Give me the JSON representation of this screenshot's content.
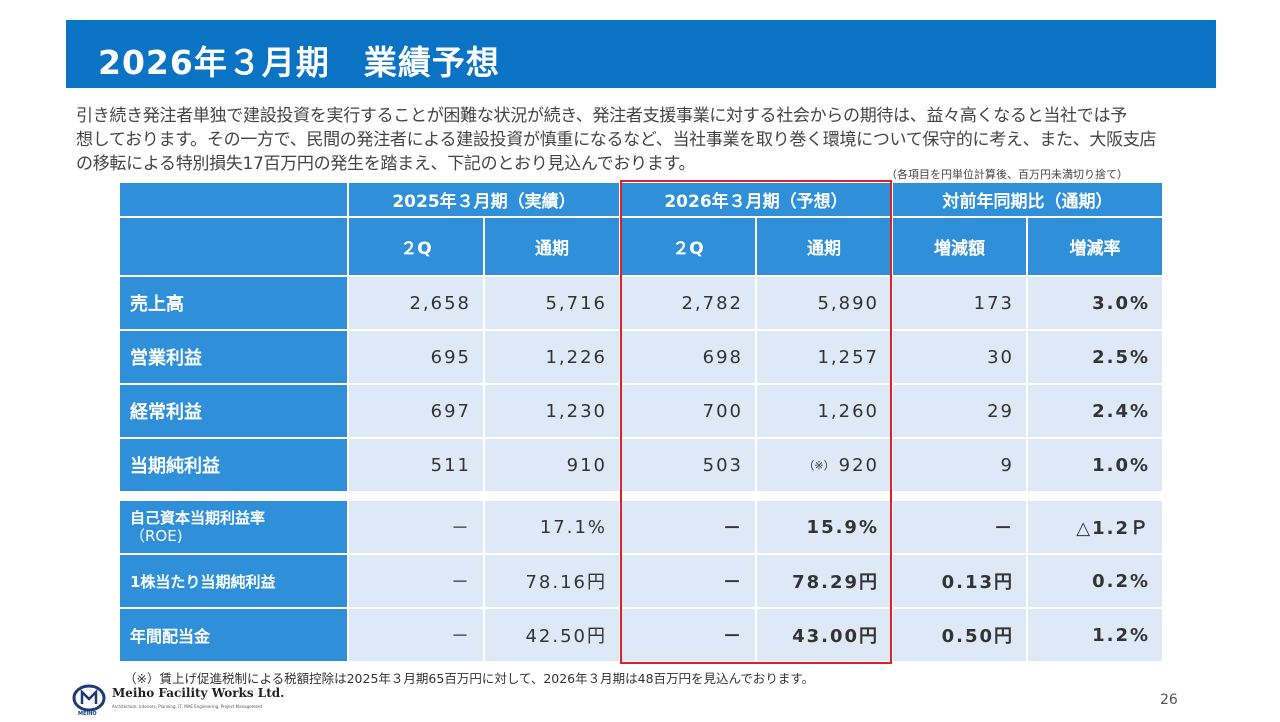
{
  "title": "2026年３月期　業績予想",
  "intro": [
    "引き続き発注者単独で建設投資を実行することが困難な状況が続き、発注者支援事業に対する社会からの期待は、益々高くなると当社では予",
    "想しております。その一方で、民間の発注者による建設投資が慎重になるなど、当社事業を取り巻く環境について保守的に考え、また、大阪支店",
    "の移転による特別損失17百万円の発生を踏まえ、下記のとおり見込んでおります。"
  ],
  "unit_note": "（各項目を円単位計算後、百万円未満切り捨て）",
  "table": {
    "group_headers": [
      "2025年３月期（実績）",
      "2026年３月期（予想）",
      "対前年同期比（通期）"
    ],
    "sub_headers": [
      "２Q",
      "通期",
      "２Q",
      "通期",
      "増減額",
      "増減率"
    ],
    "rows": [
      {
        "label": "売上高",
        "values": [
          "2,658",
          "5,716",
          "2,782",
          "5,890",
          "173",
          "3.0%"
        ]
      },
      {
        "label": "営業利益",
        "values": [
          "695",
          "1,226",
          "698",
          "1,257",
          "30",
          "2.5%"
        ]
      },
      {
        "label": "経常利益",
        "values": [
          "697",
          "1,230",
          "700",
          "1,260",
          "29",
          "2.4%"
        ]
      },
      {
        "label": "当期純利益",
        "values": [
          "511",
          "910",
          "503",
          "920",
          "9",
          "1.0%"
        ],
        "note": "（※）"
      },
      {
        "label": "自己資本当期利益率",
        "label2": "（ROE)",
        "values": [
          "－",
          "17.1%",
          "－",
          "15.9%",
          "－",
          "△1.2Ｐ"
        ]
      },
      {
        "label": "1株当たり当期純利益",
        "values": [
          "－",
          "78.16円",
          "－",
          "78.29円",
          "0.13円",
          "0.2%"
        ]
      },
      {
        "label": "年間配当金",
        "values": [
          "－",
          "42.50円",
          "－",
          "43.00円",
          "0.50円",
          "1.2%"
        ]
      }
    ]
  },
  "footnote": "（※）賃上げ促進税制による税額控除は2025年３月期65百万円に対して、2026年３月期は48百万円を見込んでおります。",
  "logo": {
    "name": "Meiho Facility Works Ltd.",
    "tagline": "Architecture, Interiors, Planning, IT, MAE Engineering, Project Management",
    "brand": "MEIHO"
  },
  "page_number": "26",
  "colors": {
    "title_bar": "#0b73c4",
    "header": "#2f8fd9",
    "cell": "#dde9f7",
    "highlight": "#e11f26"
  }
}
